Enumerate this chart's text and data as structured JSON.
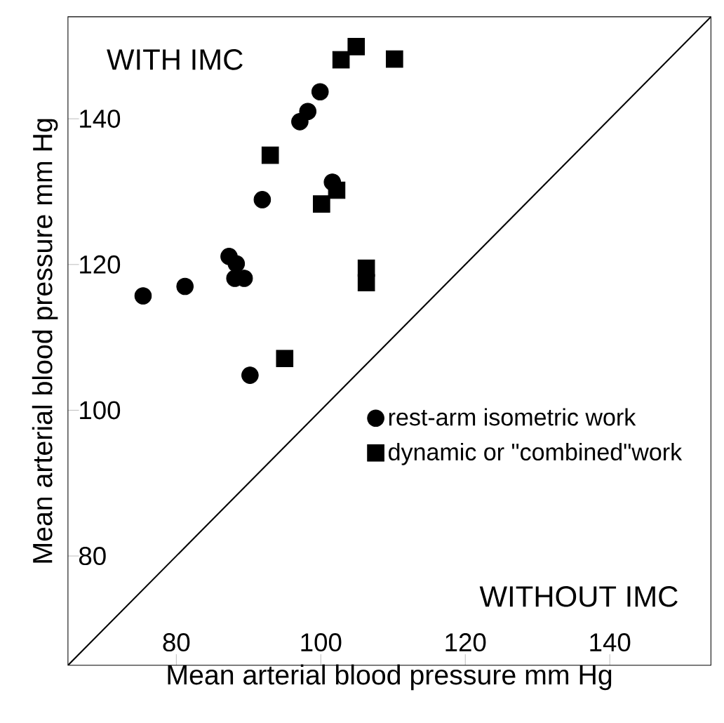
{
  "chart_data": {
    "type": "scatter",
    "xlabel": "Mean arterial blood pressure mm Hg",
    "ylabel": "Mean arterial blood pressure mm Hg",
    "xlim": [
      65,
      154
    ],
    "ylim": [
      65,
      154
    ],
    "xticks": [
      80,
      100,
      120,
      140
    ],
    "yticks": [
      80,
      100,
      120,
      140
    ],
    "grid": false,
    "legend": "bottom right",
    "annotations": [
      "WITH IMC",
      "WITHOUT IMC"
    ],
    "series": [
      {
        "name": "rest-arm isometric work",
        "color": "#000000",
        "marker": "circle",
        "x": [
          75.4,
          81.2,
          87.3,
          88.3,
          88.1,
          89.4,
          91.9,
          97.1,
          98.2,
          99.9,
          101.6,
          90.2
        ],
        "values": [
          115.7,
          117.0,
          121.1,
          120.1,
          118.1,
          118.1,
          128.9,
          139.6,
          141.0,
          143.7,
          131.3,
          104.8
        ]
      },
      {
        "name": "dynamic or \"combined\"work",
        "color": "#000000",
        "marker": "square",
        "x": [
          93.0,
          102.8,
          104.9,
          110.2,
          100.1,
          102.2,
          106.3,
          106.3,
          95.0
        ],
        "values": [
          135.0,
          148.1,
          149.9,
          148.2,
          128.3,
          130.2,
          119.5,
          117.5,
          107.1
        ]
      },
      {
        "type": "line",
        "color": "#000000",
        "marker": "none",
        "x": [
          65,
          154
        ],
        "values": [
          65,
          154
        ]
      }
    ]
  }
}
